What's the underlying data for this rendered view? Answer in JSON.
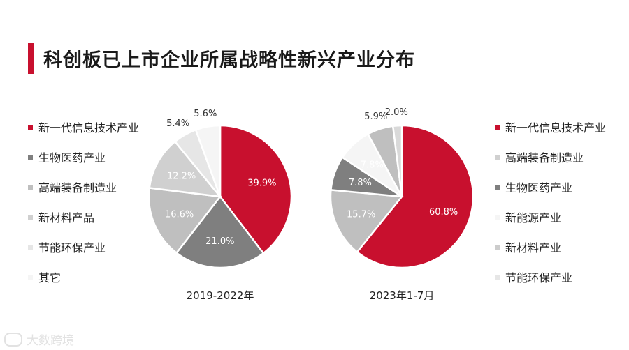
{
  "header": {
    "title": "科创板已上市企业所属战略性新兴产业分布"
  },
  "watermark": {
    "text": "大数跨境"
  },
  "chart_data": [
    {
      "type": "pie",
      "caption": "2019-2022年",
      "categories": [
        "新一代信息技术产业",
        "生物医药产业",
        "高端装备制造业",
        "新材料产品",
        "节能环保产业",
        "其它"
      ],
      "values": [
        39.9,
        21.0,
        16.6,
        12.2,
        5.4,
        5.6
      ],
      "labels": [
        "39.9%",
        "21.0%",
        "16.6%",
        "12.2%",
        "5.4%",
        "5.6%"
      ],
      "colors": [
        "#c8102e",
        "#7f7f7f",
        "#bfbfbf",
        "#d0d0d0",
        "#e6e6e6",
        "#f5f5f5"
      ],
      "legend_colors": [
        "#c8102e",
        "#7f7f7f",
        "#bfbfbf",
        "#d0d0d0",
        "#e6e6e6",
        "#f5f5f5"
      ],
      "legend": "left"
    },
    {
      "type": "pie",
      "caption": "2023年1-7月",
      "categories": [
        "新一代信息技术产业",
        "高端装备制造业",
        "生物医药产业",
        "新能源产业",
        "新材料产业",
        "节能环保产业"
      ],
      "values": [
        60.8,
        15.7,
        7.8,
        7.8,
        5.9,
        2.0
      ],
      "labels": [
        "60.8%",
        "15.7%",
        "7.8%",
        "7.8%",
        "5.9%",
        "2.0%"
      ],
      "colors": [
        "#c8102e",
        "#bfbfbf",
        "#7f7f7f",
        "#f5f5f5",
        "#bfbfbf",
        "#d9d9d9"
      ],
      "legend_colors": [
        "#c8102e",
        "#d0d0d0",
        "#7f7f7f",
        "#f5f5f5",
        "#cccccc",
        "#e6e6e6"
      ],
      "legend": "right"
    }
  ]
}
